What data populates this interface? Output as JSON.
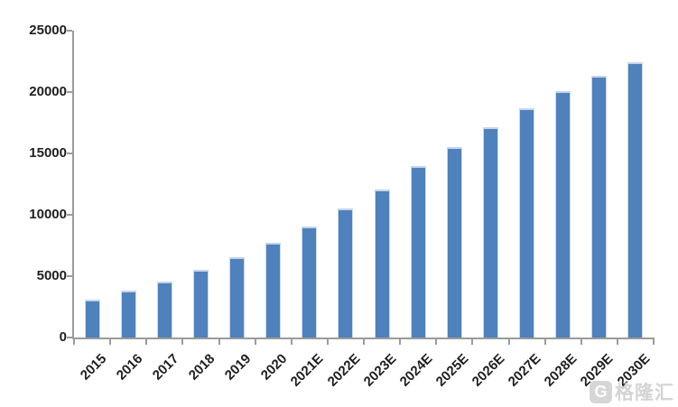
{
  "chart_data": {
    "type": "bar",
    "title": "",
    "xlabel": "",
    "ylabel": "",
    "categories": [
      "2015",
      "2016",
      "2017",
      "2018",
      "2019",
      "2020",
      "2021E",
      "2022E",
      "2023E",
      "2024E",
      "2025E",
      "2026E",
      "2027E",
      "2028E",
      "2029E",
      "2030E"
    ],
    "values": [
      3100,
      3850,
      4550,
      5550,
      6550,
      7700,
      9050,
      10500,
      12050,
      13950,
      15550,
      17150,
      18700,
      20100,
      21300,
      22450
    ],
    "ylim": [
      0,
      25000
    ],
    "yticks": [
      0,
      5000,
      10000,
      15000,
      20000,
      25000
    ],
    "grid": false,
    "legend_position": "none",
    "x_label_rotation_deg": -45,
    "colors": {
      "bar_fill": "#4f81bd",
      "bar_edge": "#cdd9ec",
      "axis": "#9b9b9b",
      "tick_label": "#1f1f1f",
      "background": "#ffffff"
    }
  },
  "watermark": {
    "icon_letter": "G",
    "text": "格隆汇",
    "color": "#d2d2d2"
  }
}
